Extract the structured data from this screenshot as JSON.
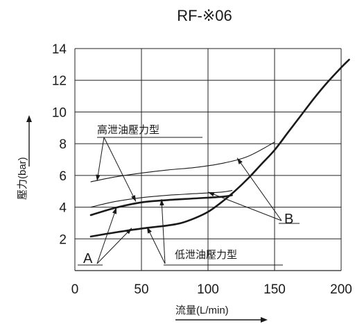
{
  "chart_data": {
    "type": "line",
    "title": "RF-※06",
    "xlabel": "流量(L/min)",
    "ylabel": "壓力(bar)",
    "xlim": [
      0,
      200
    ],
    "ylim": [
      0,
      14
    ],
    "x_ticks": [
      0,
      50,
      100,
      150,
      200
    ],
    "y_ticks": [
      2,
      4,
      6,
      8,
      10,
      12,
      14
    ],
    "grid": true,
    "annotations": {
      "high_drain": "高泄油壓力型",
      "low_drain": "低泄油壓力型",
      "label_a": "A",
      "label_b": "B"
    },
    "series": [
      {
        "id": "A-high",
        "x": [
          12,
          30,
          50,
          70,
          90,
          110,
          118
        ],
        "y": [
          3.5,
          3.95,
          4.3,
          4.45,
          4.55,
          4.65,
          4.75
        ]
      },
      {
        "id": "A-low",
        "x": [
          12,
          30,
          50,
          70,
          80,
          90,
          100,
          110,
          120,
          130,
          140,
          150,
          160,
          170,
          180,
          190,
          200,
          206
        ],
        "y": [
          2.15,
          2.4,
          2.65,
          2.85,
          3.0,
          3.3,
          3.7,
          4.3,
          5.0,
          5.8,
          6.7,
          7.6,
          8.7,
          9.8,
          10.9,
          11.9,
          12.8,
          13.3
        ]
      },
      {
        "id": "B-high",
        "x": [
          12,
          30,
          50,
          70,
          90,
          110,
          130,
          150
        ],
        "y": [
          5.6,
          5.9,
          6.15,
          6.35,
          6.5,
          6.75,
          7.2,
          8.1
        ]
      },
      {
        "id": "B-low",
        "x": [
          12,
          30,
          50,
          70,
          90,
          110,
          118
        ],
        "y": [
          4.0,
          4.35,
          4.6,
          4.75,
          4.85,
          4.95,
          5.05
        ]
      }
    ]
  }
}
